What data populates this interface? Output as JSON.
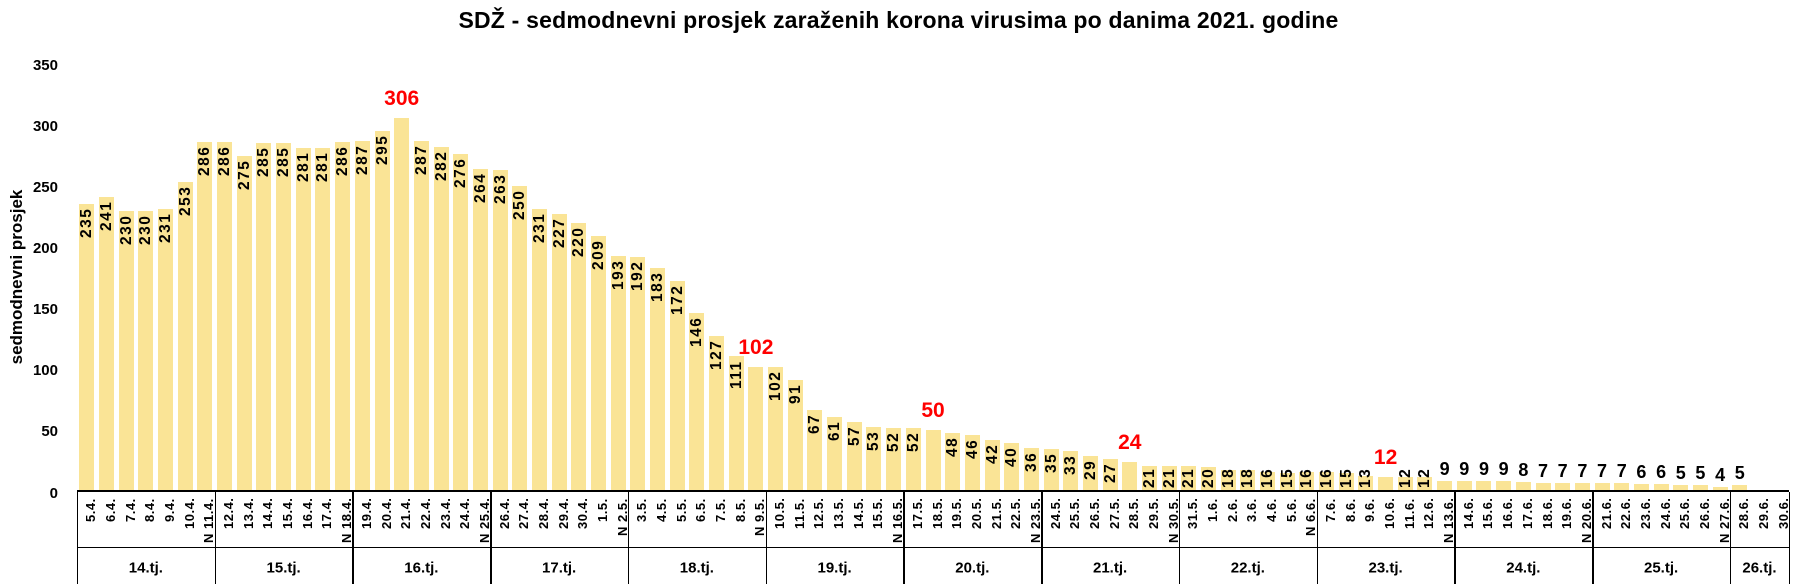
{
  "title": "SDŽ - sedmodnevni prosjek zaraženih korona virusima po danima 2021. godine",
  "chart_data": {
    "type": "bar",
    "title": "SDŽ - sedmodnevni prosjek zaraženih korona virusima po danima 2021. godine",
    "xlabel": "",
    "ylabel": "sedmodnevni prosjek",
    "ylim": [
      0,
      350
    ],
    "yticks": [
      0,
      50,
      100,
      150,
      200,
      250,
      300,
      350
    ],
    "grid": false,
    "legend": "none",
    "bar_color": "#FAE496",
    "label_color": "#000000",
    "highlight_color": "#FF0000",
    "weeks": [
      {
        "label": "14.tj.",
        "days": [
          {
            "date": "5.4.",
            "value": 235
          },
          {
            "date": "6.4.",
            "value": 241
          },
          {
            "date": "7.4.",
            "value": 230
          },
          {
            "date": "8.4.",
            "value": 230
          },
          {
            "date": "9.4.",
            "value": 231
          },
          {
            "date": "10.4.",
            "value": 253
          },
          {
            "date": "N 11.4.",
            "value": 286
          }
        ]
      },
      {
        "label": "15.tj.",
        "days": [
          {
            "date": "12.4.",
            "value": 286
          },
          {
            "date": "13.4.",
            "value": 275
          },
          {
            "date": "14.4.",
            "value": 285
          },
          {
            "date": "15.4.",
            "value": 285
          },
          {
            "date": "16.4.",
            "value": 281
          },
          {
            "date": "17.4.",
            "value": 281
          },
          {
            "date": "N 18.4.",
            "value": 286
          }
        ]
      },
      {
        "label": "16.tj.",
        "days": [
          {
            "date": "19.4.",
            "value": 287
          },
          {
            "date": "20.4.",
            "value": 295
          },
          {
            "date": "21.4.",
            "value": 306,
            "highlight": true
          },
          {
            "date": "22.4.",
            "value": 287
          },
          {
            "date": "23.4.",
            "value": 282
          },
          {
            "date": "24.4.",
            "value": 276
          },
          {
            "date": "N 25.4.",
            "value": 264
          }
        ]
      },
      {
        "label": "17.tj.",
        "days": [
          {
            "date": "26.4.",
            "value": 263
          },
          {
            "date": "27.4.",
            "value": 250
          },
          {
            "date": "28.4.",
            "value": 231
          },
          {
            "date": "29.4.",
            "value": 227
          },
          {
            "date": "30.4.",
            "value": 220
          },
          {
            "date": "1.5.",
            "value": 209
          },
          {
            "date": "N 2.5.",
            "value": 193
          }
        ]
      },
      {
        "label": "18.tj.",
        "days": [
          {
            "date": "3.5.",
            "value": 192
          },
          {
            "date": "4.5.",
            "value": 183
          },
          {
            "date": "5.5.",
            "value": 172
          },
          {
            "date": "6.5.",
            "value": 146
          },
          {
            "date": "7.5.",
            "value": 127
          },
          {
            "date": "8.5.",
            "value": 111
          },
          {
            "date": "N 9.5.",
            "value": 102,
            "highlight": true
          }
        ]
      },
      {
        "label": "19.tj.",
        "days": [
          {
            "date": "10.5.",
            "value": 102
          },
          {
            "date": "11.5.",
            "value": 91
          },
          {
            "date": "12.5.",
            "value": 67
          },
          {
            "date": "13.5.",
            "value": 61
          },
          {
            "date": "14.5.",
            "value": 57
          },
          {
            "date": "15.5.",
            "value": 53
          },
          {
            "date": "N 16.5.",
            "value": 52
          }
        ]
      },
      {
        "label": "20.tj.",
        "days": [
          {
            "date": "17.5.",
            "value": 52
          },
          {
            "date": "18.5.",
            "value": 50,
            "highlight": true
          },
          {
            "date": "19.5.",
            "value": 48
          },
          {
            "date": "20.5.",
            "value": 46
          },
          {
            "date": "21.5.",
            "value": 42
          },
          {
            "date": "22.5.",
            "value": 40
          },
          {
            "date": "N 23.5.",
            "value": 36
          }
        ]
      },
      {
        "label": "21.tj.",
        "days": [
          {
            "date": "24.5.",
            "value": 35
          },
          {
            "date": "25.5.",
            "value": 33
          },
          {
            "date": "26.5.",
            "value": 29
          },
          {
            "date": "27.5.",
            "value": 27
          },
          {
            "date": "28.5.",
            "value": 24,
            "highlight": true
          },
          {
            "date": "29.5.",
            "value": 21
          },
          {
            "date": "N 30.5.",
            "value": 21
          }
        ]
      },
      {
        "label": "22.tj.",
        "days": [
          {
            "date": "31.5.",
            "value": 21
          },
          {
            "date": "1.6.",
            "value": 20
          },
          {
            "date": "2.6.",
            "value": 18
          },
          {
            "date": "3.6.",
            "value": 18
          },
          {
            "date": "4.6.",
            "value": 16
          },
          {
            "date": "5.6.",
            "value": 15
          },
          {
            "date": "N 6.6.",
            "value": 16
          }
        ]
      },
      {
        "label": "23.tj.",
        "days": [
          {
            "date": "7.6.",
            "value": 16
          },
          {
            "date": "8.6.",
            "value": 15
          },
          {
            "date": "9.6.",
            "value": 13
          },
          {
            "date": "10.6.",
            "value": 12,
            "highlight": true
          },
          {
            "date": "11.6.",
            "value": 12
          },
          {
            "date": "12.6.",
            "value": 12
          },
          {
            "date": "N 13.6.",
            "value": 9
          }
        ]
      },
      {
        "label": "24.tj.",
        "days": [
          {
            "date": "14.6.",
            "value": 9
          },
          {
            "date": "15.6.",
            "value": 9
          },
          {
            "date": "16.6.",
            "value": 9
          },
          {
            "date": "17.6.",
            "value": 8
          },
          {
            "date": "18.6.",
            "value": 7
          },
          {
            "date": "19.6.",
            "value": 7
          },
          {
            "date": "N 20.6.",
            "value": 7
          }
        ]
      },
      {
        "label": "25.tj.",
        "days": [
          {
            "date": "21.6.",
            "value": 7
          },
          {
            "date": "22.6.",
            "value": 7
          },
          {
            "date": "23.6.",
            "value": 6
          },
          {
            "date": "24.6.",
            "value": 6
          },
          {
            "date": "25.6.",
            "value": 5
          },
          {
            "date": "26.6.",
            "value": 5
          },
          {
            "date": "N 27.6.",
            "value": 4
          }
        ]
      },
      {
        "label": "26.tj.",
        "days": [
          {
            "date": "28.6.",
            "value": 5
          },
          {
            "date": "29.6.",
            "value": null
          },
          {
            "date": "30.6.",
            "value": null
          }
        ]
      }
    ]
  }
}
